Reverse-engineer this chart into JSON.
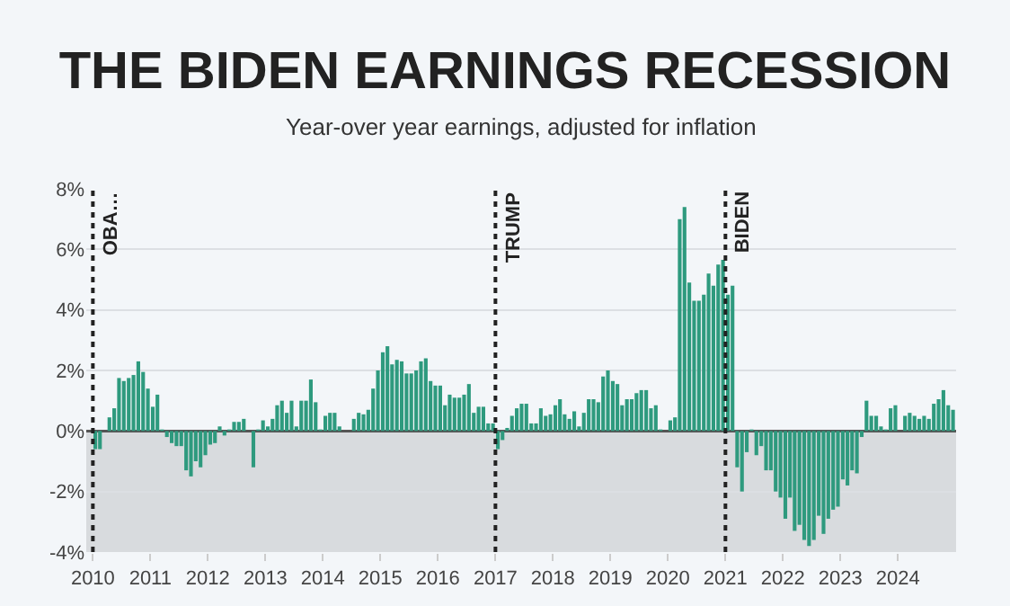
{
  "chart_data": {
    "type": "bar",
    "title": "THE BIDEN EARNINGS RECESSION",
    "subtitle": "Year-over year earnings, adjusted for inflation",
    "x": [
      "2010-01",
      "2010-02",
      "2010-03",
      "2010-04",
      "2010-05",
      "2010-06",
      "2010-07",
      "2010-08",
      "2010-09",
      "2010-10",
      "2010-11",
      "2010-12",
      "2011-01",
      "2011-02",
      "2011-03",
      "2011-04",
      "2011-05",
      "2011-06",
      "2011-07",
      "2011-08",
      "2011-09",
      "2011-10",
      "2011-11",
      "2011-12",
      "2012-01",
      "2012-02",
      "2012-03",
      "2012-04",
      "2012-05",
      "2012-06",
      "2012-07",
      "2012-08",
      "2012-09",
      "2012-10",
      "2012-11",
      "2012-12",
      "2013-01",
      "2013-02",
      "2013-03",
      "2013-04",
      "2013-05",
      "2013-06",
      "2013-07",
      "2013-08",
      "2013-09",
      "2013-10",
      "2013-11",
      "2013-12",
      "2014-01",
      "2014-02",
      "2014-03",
      "2014-04",
      "2014-05",
      "2014-06",
      "2014-07",
      "2014-08",
      "2014-09",
      "2014-10",
      "2014-11",
      "2014-12",
      "2015-01",
      "2015-02",
      "2015-03",
      "2015-04",
      "2015-05",
      "2015-06",
      "2015-07",
      "2015-08",
      "2015-09",
      "2015-10",
      "2015-11",
      "2015-12",
      "2016-01",
      "2016-02",
      "2016-03",
      "2016-04",
      "2016-05",
      "2016-06",
      "2016-07",
      "2016-08",
      "2016-09",
      "2016-10",
      "2016-11",
      "2016-12",
      "2017-01",
      "2017-02",
      "2017-03",
      "2017-04",
      "2017-05",
      "2017-06",
      "2017-07",
      "2017-08",
      "2017-09",
      "2017-10",
      "2017-11",
      "2017-12",
      "2018-01",
      "2018-02",
      "2018-03",
      "2018-04",
      "2018-05",
      "2018-06",
      "2018-07",
      "2018-08",
      "2018-09",
      "2018-10",
      "2018-11",
      "2018-12",
      "2019-01",
      "2019-02",
      "2019-03",
      "2019-04",
      "2019-05",
      "2019-06",
      "2019-07",
      "2019-08",
      "2019-09",
      "2019-10",
      "2019-11",
      "2019-12",
      "2020-01",
      "2020-02",
      "2020-03",
      "2020-04",
      "2020-05",
      "2020-06",
      "2020-07",
      "2020-08",
      "2020-09",
      "2020-10",
      "2020-11",
      "2020-12",
      "2021-01",
      "2021-02",
      "2021-03",
      "2021-04",
      "2021-05",
      "2021-06",
      "2021-07",
      "2021-08",
      "2021-09",
      "2021-10",
      "2021-11",
      "2021-12",
      "2022-01",
      "2022-02",
      "2022-03",
      "2022-04",
      "2022-05",
      "2022-06",
      "2022-07",
      "2022-08",
      "2022-09",
      "2022-10",
      "2022-11",
      "2022-12",
      "2023-01",
      "2023-02",
      "2023-03",
      "2023-04",
      "2023-05",
      "2023-06",
      "2023-07",
      "2023-08",
      "2023-09",
      "2023-10",
      "2023-11",
      "2023-12",
      "2024-01",
      "2024-02",
      "2024-03",
      "2024-04",
      "2024-05",
      "2024-06",
      "2024-07",
      "2024-08",
      "2024-09",
      "2024-10",
      "2024-11",
      "2024-12"
    ],
    "values": [
      -0.6,
      -0.6,
      0,
      0.45,
      0.75,
      1.75,
      1.65,
      1.75,
      1.85,
      2.3,
      1.95,
      1.4,
      0.8,
      1.2,
      0.05,
      -0.2,
      -0.4,
      -0.5,
      -0.5,
      -1.3,
      -1.5,
      -1.0,
      -1.2,
      -0.8,
      -0.45,
      -0.4,
      0.15,
      -0.15,
      0.05,
      0.3,
      0.3,
      0.4,
      0,
      -1.2,
      0.05,
      0.35,
      0.15,
      0.4,
      0.85,
      1.0,
      0.6,
      1.0,
      0.15,
      1.0,
      1.0,
      1.7,
      0.95,
      0.05,
      0.5,
      0.6,
      0.6,
      0.15,
      0,
      0,
      0.4,
      0.6,
      0.55,
      0.7,
      1.4,
      2.0,
      2.6,
      2.8,
      2.2,
      2.35,
      2.3,
      1.9,
      1.9,
      2.0,
      2.3,
      2.4,
      1.65,
      1.5,
      1.5,
      0.85,
      1.2,
      1.1,
      1.1,
      1.2,
      1.55,
      0.6,
      0.8,
      0.8,
      0.25,
      0.25,
      -0.6,
      -0.3,
      0.1,
      0.5,
      0.75,
      0.9,
      0.9,
      0.25,
      0.25,
      0.75,
      0.5,
      0.55,
      0.85,
      1.05,
      0.55,
      0.4,
      0.65,
      0.15,
      0.6,
      1.05,
      1.05,
      0.95,
      1.8,
      2.0,
      1.65,
      1.55,
      0.85,
      1.05,
      1.05,
      1.25,
      1.35,
      1.35,
      0.75,
      0.85,
      0.05,
      0,
      0.35,
      0.45,
      7.0,
      7.4,
      4.9,
      4.3,
      4.3,
      4.5,
      5.2,
      4.8,
      5.5,
      5.65,
      4.5,
      4.8,
      -1.2,
      -2.0,
      -0.7,
      0.05,
      -0.8,
      -0.5,
      -1.3,
      -1.3,
      -2.0,
      -2.2,
      -2.9,
      -2.2,
      -3.3,
      -3.1,
      -3.6,
      -3.8,
      -3.6,
      -2.8,
      -3.4,
      -2.9,
      -2.6,
      -2.5,
      -1.6,
      -1.8,
      -1.3,
      -1.4,
      -0.2,
      1.0,
      0.5,
      0.5,
      0.15,
      0.05,
      0.75,
      0.85,
      0,
      0.5,
      0.6,
      0.5,
      0.4,
      0.5,
      0.4,
      0.9,
      1.05,
      1.35,
      0.85,
      0.7
    ],
    "color": "#2e9a7e",
    "xlim": [
      "2009-11-20",
      "2025-01-05"
    ],
    "xticks": [
      {
        "value": "2010-01",
        "label": "2010"
      },
      {
        "value": "2011-01",
        "label": "2011"
      },
      {
        "value": "2012-01",
        "label": "2012"
      },
      {
        "value": "2013-01",
        "label": "2013"
      },
      {
        "value": "2014-01",
        "label": "2014"
      },
      {
        "value": "2015-01",
        "label": "2015"
      },
      {
        "value": "2016-01",
        "label": "2016"
      },
      {
        "value": "2017-01",
        "label": "2017"
      },
      {
        "value": "2018-01",
        "label": "2018"
      },
      {
        "value": "2019-01",
        "label": "2019"
      },
      {
        "value": "2020-01",
        "label": "2020"
      },
      {
        "value": "2021-01",
        "label": "2021"
      },
      {
        "value": "2022-01",
        "label": "2022"
      },
      {
        "value": "2023-01",
        "label": "2023"
      },
      {
        "value": "2024-01",
        "label": "2024"
      }
    ],
    "ylim": [
      -4,
      8
    ],
    "yticks": [
      {
        "value": -4,
        "label": "-4%"
      },
      {
        "value": -2,
        "label": "-2%"
      },
      {
        "value": 0,
        "label": "0%"
      },
      {
        "value": 2,
        "label": "2%"
      },
      {
        "value": 4,
        "label": "4%"
      },
      {
        "value": 6,
        "label": "6%"
      },
      {
        "value": 8,
        "label": "8%"
      }
    ],
    "grid": "y",
    "bands": [
      {
        "axis": "y",
        "from": -4,
        "to": 0,
        "color": "#d8dbde"
      }
    ],
    "ref_lines": [
      {
        "axis": "x",
        "value": "2010-01",
        "label": "OBA…",
        "line_style": "dotted"
      },
      {
        "axis": "x",
        "value": "2017-01",
        "label": "TRUMP",
        "line_style": "dotted"
      },
      {
        "axis": "x",
        "value": "2021-01",
        "label": "BIDEN",
        "line_style": "dotted"
      }
    ]
  }
}
